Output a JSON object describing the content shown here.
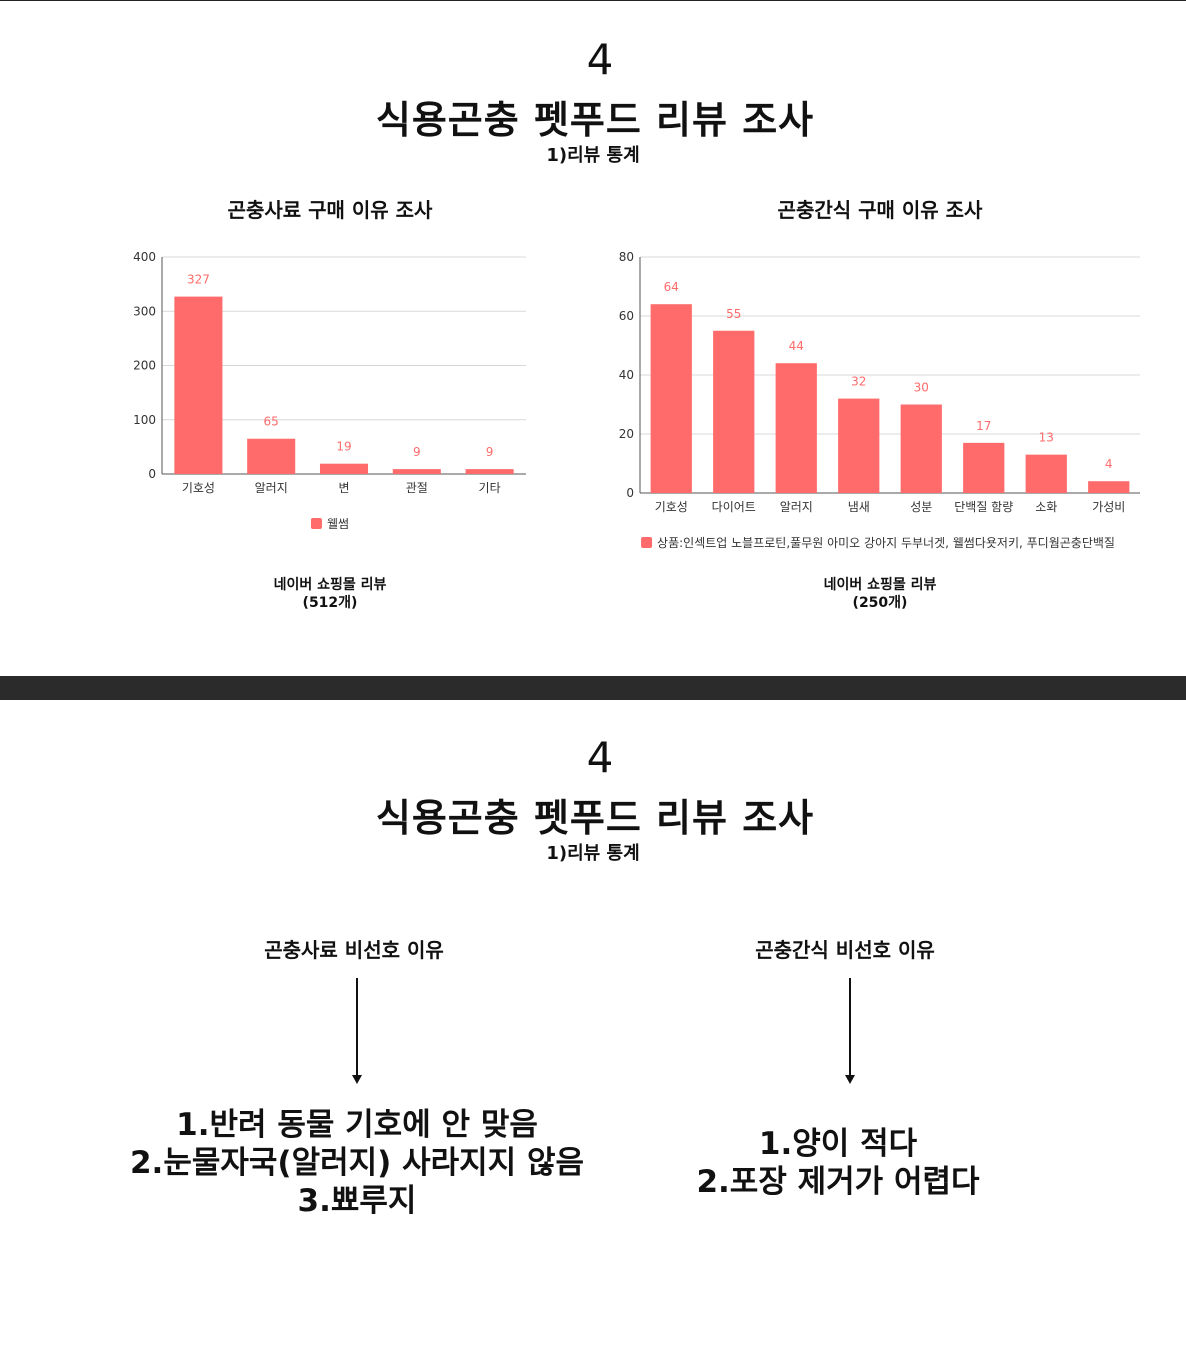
{
  "accent_color": "#ff6b6b",
  "slide1": {
    "number": "4",
    "title": "식용곤충 펫푸드 리뷰 조사",
    "subtitle": "1)리뷰 통계",
    "left": {
      "source_line1": "네이버 쇼핑몰 리뷰",
      "source_line2": "(512개)"
    },
    "right": {
      "source_line1": "네이버 쇼핑몰 리뷰",
      "source_line2": "(250개)"
    }
  },
  "slide2": {
    "number": "4",
    "title": "식용곤충 펫푸드 리뷰 조사",
    "subtitle": "1)리뷰 통계",
    "left": {
      "heading": "곤충사료 비선호 이유",
      "reasons": [
        "1.반려 동물 기호에 안 맞음",
        "2.눈물자국(알러지) 사라지지 않음",
        "3.뾰루지"
      ]
    },
    "right": {
      "heading": "곤충간식 비선호 이유",
      "reasons": [
        "1.양이 적다",
        "2.포장 제거가 어렵다"
      ]
    }
  },
  "chart_data": [
    {
      "type": "bar",
      "title": "곤충사료 구매 이유 조사",
      "categories": [
        "기호성",
        "알러지",
        "변",
        "관절",
        "기타"
      ],
      "series": [
        {
          "name": "웰썸",
          "values": [
            327,
            65,
            19,
            9,
            9
          ],
          "color": "#ff6b6b"
        }
      ],
      "ylim": [
        0,
        400
      ],
      "yticks": [
        0,
        100,
        200,
        300,
        400
      ],
      "grid": true,
      "data_labels": true,
      "legend_position": "bottom"
    },
    {
      "type": "bar",
      "title": "곤충간식 구매 이유 조사",
      "categories": [
        "기호성",
        "다이어트",
        "알러지",
        "냄새",
        "성분",
        "단백질 함량",
        "소화",
        "가성비"
      ],
      "series": [
        {
          "name": "상품:인섹트업 노블프로틴,풀무원 아미오 강아지 두부너겟, 웰썸다욧저키, 푸디웜곤충단백질",
          "values": [
            64,
            55,
            44,
            32,
            30,
            17,
            13,
            4
          ],
          "color": "#ff6b6b"
        }
      ],
      "ylim": [
        0,
        80
      ],
      "yticks": [
        0,
        20,
        40,
        60,
        80
      ],
      "grid": true,
      "data_labels": true,
      "legend_position": "bottom"
    }
  ]
}
